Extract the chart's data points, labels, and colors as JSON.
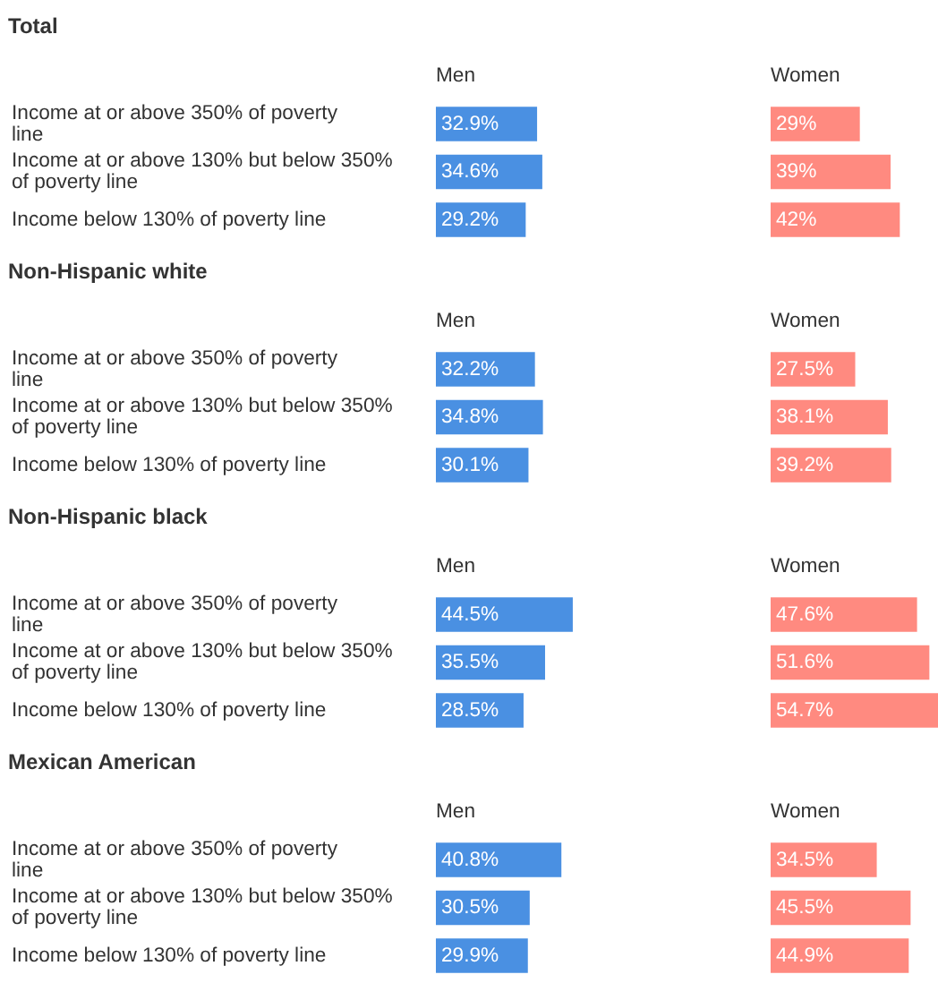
{
  "chart_data": [
    {
      "type": "bar",
      "orientation": "horizontal",
      "title": "Total",
      "categories": [
        "Income at or above 350% of poverty line",
        "Income at or above 130% but below 350% of poverty line",
        "Income below 130% of poverty line"
      ],
      "series": [
        {
          "name": "Men",
          "color": "#4a90e2",
          "values": [
            32.9,
            34.6,
            29.2
          ],
          "value_labels": [
            "32.9%",
            "34.6%",
            "29.2%"
          ]
        }
      ]
    },
    {
      "type": "bar",
      "orientation": "horizontal",
      "tick_labels": false,
      "categories": [
        null,
        null,
        null
      ],
      "series": [
        {
          "name": "Women",
          "color": "#ff8a80",
          "values": [
            29,
            39,
            42
          ],
          "value_labels": [
            "29%",
            "39%",
            "42%"
          ]
        }
      ]
    },
    {
      "type": "bar",
      "orientation": "horizontal",
      "title": "Non-Hispanic white",
      "categories": [
        "Income at or above 350% of poverty line",
        "Income at or above 130% but below 350% of poverty line",
        "Income below 130% of poverty line"
      ],
      "series": [
        {
          "name": "Men",
          "color": "#4a90e2",
          "values": [
            32.2,
            34.8,
            30.1
          ],
          "value_labels": [
            "32.2%",
            "34.8%",
            "30.1%"
          ]
        }
      ]
    },
    {
      "type": "bar",
      "orientation": "horizontal",
      "tick_labels": false,
      "categories": [
        null,
        null,
        null
      ],
      "series": [
        {
          "name": "Women",
          "color": "#ff8a80",
          "values": [
            27.5,
            38.1,
            39.2
          ],
          "value_labels": [
            "27.5%",
            "38.1%",
            "39.2%"
          ]
        }
      ]
    },
    {
      "type": "bar",
      "orientation": "horizontal",
      "title": "Non-Hispanic black",
      "categories": [
        "Income at or above 350% of poverty line",
        "Income at or above 130% but below 350% of poverty line",
        "Income below 130% of poverty line"
      ],
      "series": [
        {
          "name": "Men",
          "color": "#4a90e2",
          "values": [
            44.5,
            35.5,
            28.5
          ],
          "value_labels": [
            "44.5%",
            "35.5%",
            "28.5%"
          ]
        }
      ]
    },
    {
      "type": "bar",
      "orientation": "horizontal",
      "tick_labels": false,
      "categories": [
        null,
        null,
        null
      ],
      "series": [
        {
          "name": "Women",
          "color": "#ff8a80",
          "values": [
            47.6,
            51.6,
            54.7
          ],
          "value_labels": [
            "47.6%",
            "51.6%",
            "54.7%"
          ]
        }
      ]
    },
    {
      "type": "bar",
      "orientation": "horizontal",
      "title": "Mexican American",
      "categories": [
        "Income at or above 350% of poverty line",
        "Income at or above 130% but below 350% of poverty line",
        "Income below 130% of poverty line"
      ],
      "series": [
        {
          "name": "Men",
          "color": "#4a90e2",
          "values": [
            40.8,
            30.5,
            29.9
          ],
          "value_labels": [
            "40.8%",
            "30.5%",
            "29.9%"
          ]
        }
      ]
    },
    {
      "type": "bar",
      "orientation": "horizontal",
      "tick_labels": false,
      "categories": [
        null,
        null,
        null
      ],
      "series": [
        {
          "name": "Women",
          "color": "#ff8a80",
          "values": [
            34.5,
            45.5,
            44.9
          ],
          "value_labels": [
            "34.5%",
            "45.5%",
            "44.9%"
          ]
        }
      ]
    }
  ]
}
